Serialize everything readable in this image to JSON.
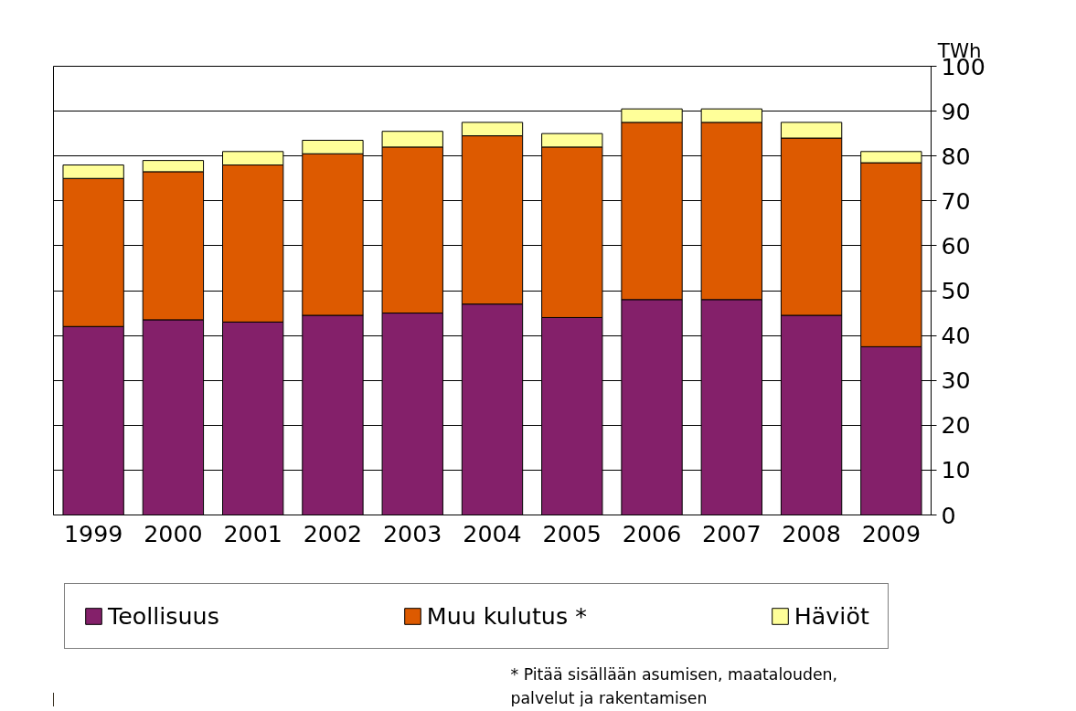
{
  "chart_data": {
    "type": "bar",
    "stacked": true,
    "ylabel": "TWh",
    "categories": [
      "1999",
      "2000",
      "2001",
      "2002",
      "2003",
      "2004",
      "2005",
      "2006",
      "2007",
      "2008",
      "2009"
    ],
    "series": [
      {
        "name": "Teollisuus",
        "color": "#84206a",
        "values": [
          42,
          43.5,
          43,
          44.5,
          45,
          47,
          44,
          48,
          48,
          44.5,
          37.5
        ]
      },
      {
        "name": "Muu kulutus *",
        "color": "#dd5a00",
        "values": [
          33,
          33,
          35,
          36,
          37,
          37.5,
          38,
          39.5,
          39.5,
          39.5,
          41
        ]
      },
      {
        "name": "Häviöt",
        "color": "#ffff99",
        "values": [
          3,
          2.5,
          3,
          3,
          3.5,
          3,
          3,
          3,
          3,
          3.5,
          2.5
        ]
      }
    ],
    "ylim": [
      0,
      100
    ],
    "yticks": [
      0,
      10,
      20,
      30,
      40,
      50,
      60,
      70,
      80,
      90,
      100
    ],
    "grid": "y",
    "legend": "bottom",
    "annotations": [
      "* Pitää sisällään asumisen, maatalouden, palvelut ja rakentamisen"
    ]
  }
}
